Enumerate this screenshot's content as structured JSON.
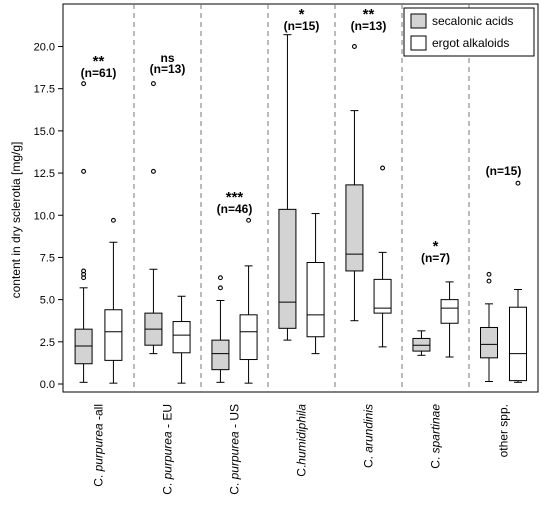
{
  "chart_data": {
    "type": "boxplot",
    "ylabel": "content in dry sclerotia [mg/g]",
    "ylim": [
      0,
      22
    ],
    "yticks": [
      "0.0",
      "2.5",
      "5.0",
      "7.5",
      "10.0",
      "12.5",
      "15.0",
      "17.5",
      "20.0"
    ],
    "yticks_values": [
      0,
      2.5,
      5,
      7.5,
      10,
      12.5,
      15,
      17.5,
      20
    ],
    "legend": {
      "position": "top-right",
      "entries": [
        {
          "label": "secalonic acids",
          "color": "#d3d3d3"
        },
        {
          "label": "ergot alkaloids",
          "color": "#ffffff"
        }
      ]
    },
    "groups": [
      {
        "pre": "C. ",
        "italic": "purpurea",
        "post": " -all",
        "significance": "**",
        "n": "(n=61)",
        "boxes": [
          {
            "series": "secalonic acids",
            "whisker_low": 0.1,
            "q1": 1.2,
            "median": 2.25,
            "q3": 3.25,
            "whisker_high": 5.7,
            "outliers": [
              6.3,
              6.5,
              6.7,
              12.6,
              17.8
            ]
          },
          {
            "series": "ergot alkaloids",
            "whisker_low": 0.05,
            "q1": 1.4,
            "median": 3.1,
            "q3": 4.4,
            "whisker_high": 8.4,
            "outliers": [
              9.7
            ]
          }
        ]
      },
      {
        "pre": "C. ",
        "italic": "purpurea",
        "post": " - EU",
        "significance": "ns",
        "n": "(n=13)",
        "boxes": [
          {
            "series": "secalonic acids",
            "whisker_low": 1.8,
            "q1": 2.3,
            "median": 3.25,
            "q3": 4.2,
            "whisker_high": 6.8,
            "outliers": [
              12.6,
              17.8
            ]
          },
          {
            "series": "ergot alkaloids",
            "whisker_low": 0.05,
            "q1": 1.85,
            "median": 2.9,
            "q3": 3.7,
            "whisker_high": 5.2,
            "outliers": []
          }
        ]
      },
      {
        "pre": "C. ",
        "italic": "purpurea",
        "post": " - US",
        "significance": "***",
        "n": "(n=46)",
        "boxes": [
          {
            "series": "secalonic acids",
            "whisker_low": 0.1,
            "q1": 0.85,
            "median": 1.8,
            "q3": 2.6,
            "whisker_high": 4.95,
            "outliers": [
              5.7,
              6.3
            ]
          },
          {
            "series": "ergot alkaloids",
            "whisker_low": 0.05,
            "q1": 1.45,
            "median": 3.1,
            "q3": 4.1,
            "whisker_high": 7.0,
            "outliers": [
              9.7
            ]
          }
        ]
      },
      {
        "pre": "C.",
        "italic": "humidiphila",
        "post": "",
        "significance": "*",
        "n": "(n=15)",
        "boxes": [
          {
            "series": "secalonic acids",
            "whisker_low": 2.6,
            "q1": 3.3,
            "median": 4.85,
            "q3": 10.35,
            "whisker_high": 20.7,
            "outliers": []
          },
          {
            "series": "ergot alkaloids",
            "whisker_low": 1.8,
            "q1": 2.8,
            "median": 4.1,
            "q3": 7.2,
            "whisker_high": 10.1,
            "outliers": []
          }
        ]
      },
      {
        "pre": "C. ",
        "italic": "arundinis",
        "post": "",
        "significance": "**",
        "n": "(n=13)",
        "boxes": [
          {
            "series": "secalonic acids",
            "whisker_low": 3.75,
            "q1": 6.7,
            "median": 7.7,
            "q3": 11.8,
            "whisker_high": 16.2,
            "outliers": [
              20.0
            ]
          },
          {
            "series": "ergot alkaloids",
            "whisker_low": 2.2,
            "q1": 4.2,
            "median": 4.5,
            "q3": 6.2,
            "whisker_high": 7.8,
            "outliers": [
              12.8
            ]
          }
        ]
      },
      {
        "pre": "C. ",
        "italic": "spartinae",
        "post": "",
        "significance": "*",
        "n": "(n=7)",
        "boxes": [
          {
            "series": "secalonic acids",
            "whisker_low": 1.7,
            "q1": 1.95,
            "median": 2.3,
            "q3": 2.7,
            "whisker_high": 3.15,
            "outliers": []
          },
          {
            "series": "ergot alkaloids",
            "whisker_low": 1.6,
            "q1": 3.6,
            "median": 4.5,
            "q3": 5.0,
            "whisker_high": 6.05,
            "outliers": []
          }
        ]
      },
      {
        "pre": "",
        "italic": "",
        "post": "other spp.",
        "significance": "",
        "n": "(n=15)",
        "boxes": [
          {
            "series": "secalonic acids",
            "whisker_low": 0.15,
            "q1": 1.55,
            "median": 2.35,
            "q3": 3.35,
            "whisker_high": 4.75,
            "outliers": [
              6.1,
              6.5
            ]
          },
          {
            "series": "ergot alkaloids",
            "whisker_low": 0.1,
            "q1": 0.2,
            "median": 1.8,
            "q3": 4.55,
            "whisker_high": 5.6,
            "outliers": [
              11.9
            ]
          }
        ]
      }
    ]
  }
}
